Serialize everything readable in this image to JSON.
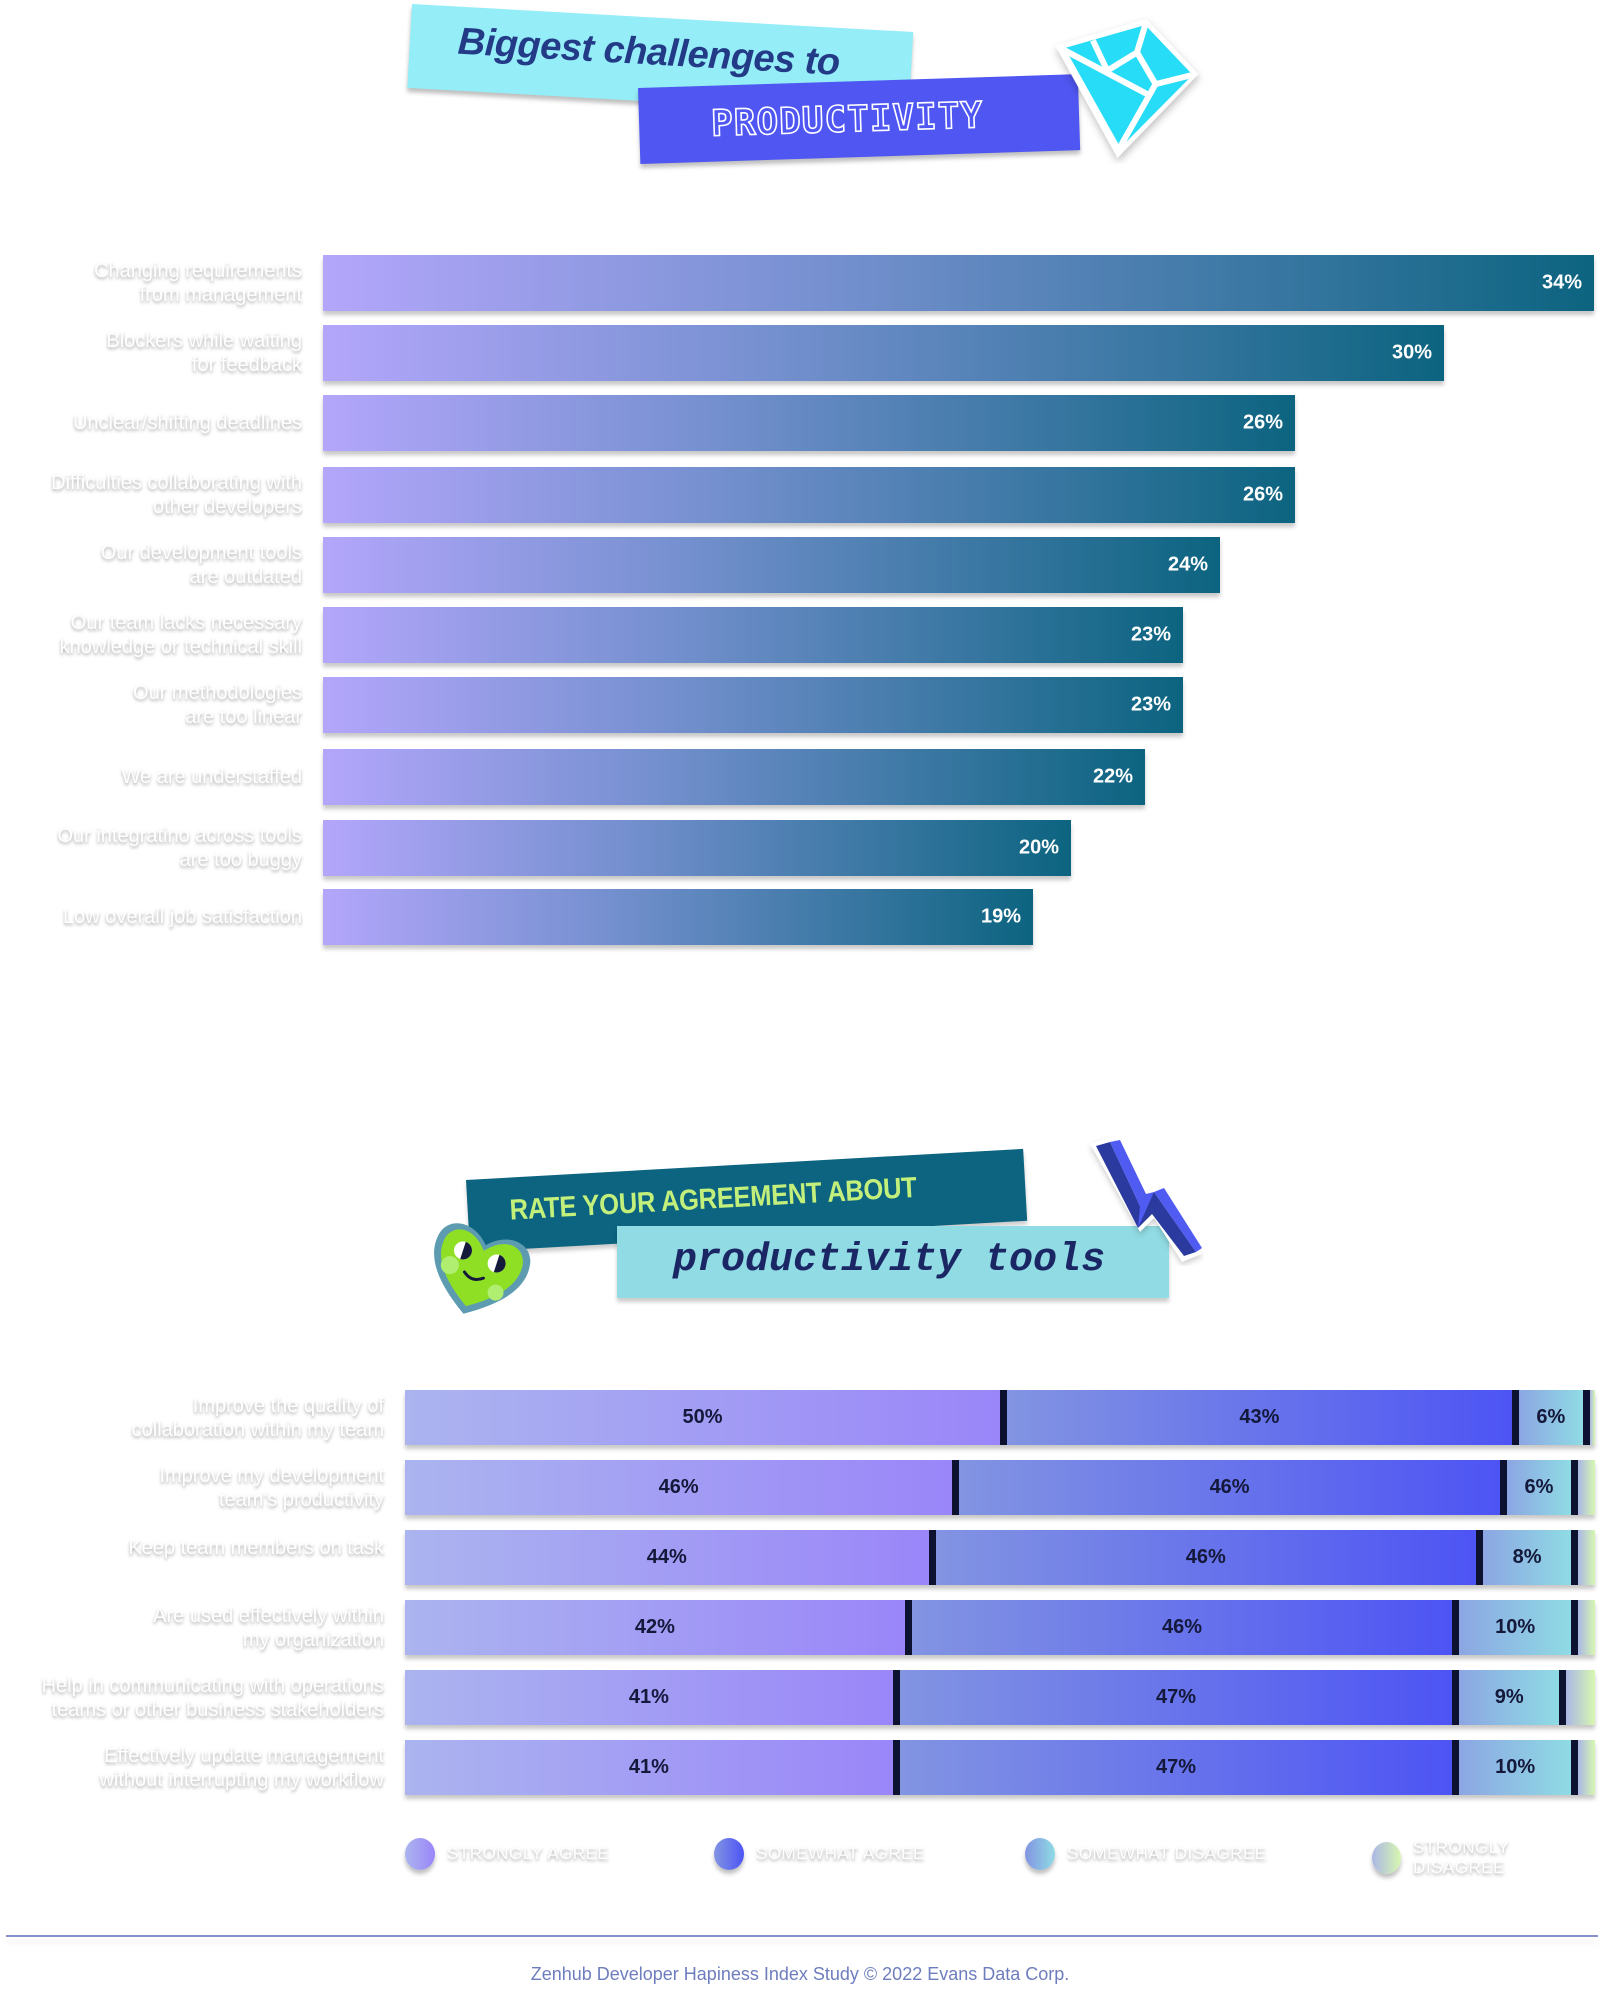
{
  "header1": {
    "line1": "Biggest challenges to",
    "line2": "PRODUCTIVITY",
    "icon": "diamond-icon"
  },
  "header2": {
    "line1": "RATE YOUR AGREEMENT ABOUT",
    "line2": "productivity tools",
    "icons": [
      "heart-face-icon",
      "lightning-bolt-icon"
    ]
  },
  "colors": {
    "bar_start": "#b3a6fb",
    "bar_end": "#0c6480",
    "strongly_agree": "#9a86f9",
    "somewhat_agree": "#4d54f4",
    "somewhat_disagree": "#8fdbe4",
    "strongly_disagree": "#d8f7b0",
    "divider": "#0c1230"
  },
  "chart_data": [
    {
      "type": "bar",
      "orientation": "horizontal",
      "title": "Biggest challenges to PRODUCTIVITY",
      "xlabel": "",
      "ylabel": "",
      "categories": [
        "Changing requirements from management",
        "Blockers while waiting for feedback",
        "Unclear/shifting deadlines",
        "Difficulties collaborating with other developers",
        "Our development tools are outdated",
        "Our team lacks necessary knowledge or technical skill",
        "Our methodologies are too linear",
        "We are understaffed",
        "Our integratino across tools are too buggy",
        "Low overall job satisfaction"
      ],
      "labels_display": [
        [
          "Changing requirements",
          "from management"
        ],
        [
          "Blockers while waiting",
          "for feedback"
        ],
        [
          "Unclear/shifting deadlines"
        ],
        [
          "Difficulties collaborating with",
          "other developers"
        ],
        [
          "Our development tools",
          "are outdated"
        ],
        [
          "Our team lacks necessary",
          "knowledge or technical skill"
        ],
        [
          "Our methodologies",
          "are too linear"
        ],
        [
          "We are understaffed"
        ],
        [
          "Our integratino across tools",
          "are too buggy"
        ],
        [
          "Low overall job satisfaction"
        ]
      ],
      "values": [
        34,
        30,
        26,
        26,
        24,
        23,
        23,
        22,
        20,
        19
      ],
      "value_labels": [
        "34%",
        "30%",
        "26%",
        "26%",
        "24%",
        "23%",
        "23%",
        "22%",
        "20%",
        "19%"
      ],
      "unit": "%",
      "grid": false,
      "legend": null
    },
    {
      "type": "bar",
      "stacked": true,
      "orientation": "horizontal",
      "title": "RATE YOUR AGREEMENT ABOUT productivity tools",
      "categories": [
        "Improve the quality of collaboration within my team",
        "Improve my development team's productivity",
        "Keep team members on task",
        "Are used effectively within my organization",
        "Help in communicating with operations teams or other business stakeholders",
        "Effectively update management without interrupting my workflow"
      ],
      "labels_display": [
        [
          "Improve the quality of",
          "collaboration within my team"
        ],
        [
          "Improve my development",
          "team's productivity"
        ],
        [
          "Keep team members on task"
        ],
        [
          "Are used effectively within",
          "my organization"
        ],
        [
          "Help in communicating with operations",
          "teams or other business stakeholders"
        ],
        [
          "Effectively update management",
          "without interrupting my workflow"
        ]
      ],
      "series": [
        {
          "name": "STRONGLY AGREE",
          "values": [
            50,
            46,
            44,
            42,
            41,
            41
          ],
          "labels": [
            "50%",
            "46%",
            "44%",
            "42%",
            "41%",
            "41%"
          ]
        },
        {
          "name": "SOMEWHAT AGREE",
          "values": [
            43,
            46,
            46,
            46,
            47,
            47
          ],
          "labels": [
            "43%",
            "46%",
            "46%",
            "46%",
            "47%",
            "47%"
          ]
        },
        {
          "name": "SOMEWHAT DISAGREE",
          "values": [
            6,
            6,
            8,
            10,
            9,
            10
          ],
          "labels": [
            "6%",
            "6%",
            "8%",
            "10%",
            "9%",
            "10%"
          ]
        },
        {
          "name": "STRONGLY DISAGREE",
          "values": [
            1,
            2,
            2,
            2,
            3,
            2
          ],
          "labels": [
            "",
            "",
            "",
            "",
            "",
            ""
          ]
        }
      ],
      "unit": "%",
      "legend_position": "bottom",
      "grid": false
    }
  ],
  "legend": [
    {
      "label": "STRONGLY AGREE"
    },
    {
      "label": "SOMEWHAT AGREE"
    },
    {
      "label": "SOMEWHAT DISAGREE"
    },
    {
      "label": "STRONGLY DISAGREE"
    }
  ],
  "footer": {
    "text": "Zenhub Developer Hapiness Index Study © 2022 Evans Data Corp."
  }
}
